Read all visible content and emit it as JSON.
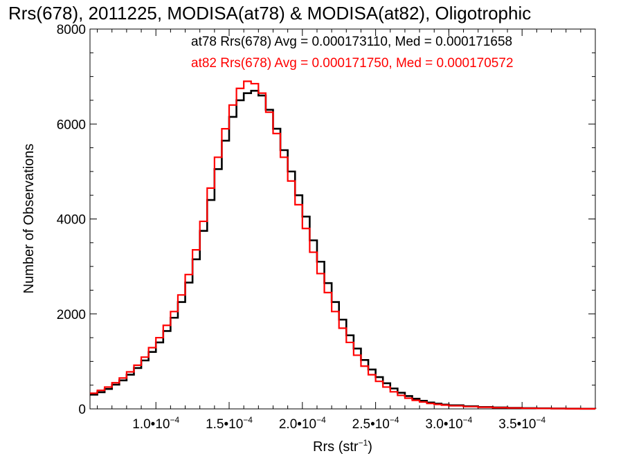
{
  "chart_data": {
    "type": "line",
    "title": "Rrs(678), 2011225, MODISA(at78) & MODISA(at82), Oligotrophic",
    "xlabel_main": "Rrs (str",
    "xlabel_sup": "−1",
    "xlabel_close": ")",
    "ylabel": "Number of Observations",
    "xlim": [
      5.5e-05,
      0.0004
    ],
    "ylim": [
      0,
      8000
    ],
    "x_ticks": [
      {
        "value": 0.0001,
        "base": "1.0•10",
        "exp": "−4"
      },
      {
        "value": 0.00015,
        "base": "1.5•10",
        "exp": "−4"
      },
      {
        "value": 0.0002,
        "base": "2.0•10",
        "exp": "−4"
      },
      {
        "value": 0.00025,
        "base": "2.5•10",
        "exp": "−4"
      },
      {
        "value": 0.0003,
        "base": "3.0•10",
        "exp": "−4"
      },
      {
        "value": 0.00035,
        "base": "3.5•10",
        "exp": "−4"
      }
    ],
    "y_ticks": [
      {
        "value": 0,
        "label": "0"
      },
      {
        "value": 2000,
        "label": "2000"
      },
      {
        "value": 4000,
        "label": "4000"
      },
      {
        "value": 6000,
        "label": "6000"
      },
      {
        "value": 8000,
        "label": "8000"
      }
    ],
    "legend_position": "top-right",
    "grid": false,
    "series": [
      {
        "name": "at78",
        "color": "#000000",
        "legend_text": "at78 Rrs(678) Avg = 0.000173110, Med = 0.000171658",
        "x": [
          5.5e-05,
          6e-05,
          6.5e-05,
          7e-05,
          7.5e-05,
          8e-05,
          8.5e-05,
          9e-05,
          9.5e-05,
          0.0001,
          0.000105,
          0.00011,
          0.000115,
          0.00012,
          0.000125,
          0.00013,
          0.000135,
          0.00014,
          0.000145,
          0.00015,
          0.000155,
          0.00016,
          0.000165,
          0.00017,
          0.000175,
          0.00018,
          0.000185,
          0.00019,
          0.000195,
          0.0002,
          0.000205,
          0.00021,
          0.000215,
          0.00022,
          0.000225,
          0.00023,
          0.000235,
          0.00024,
          0.000245,
          0.00025,
          0.000255,
          0.00026,
          0.000265,
          0.00027,
          0.000275,
          0.00028,
          0.000285,
          0.00029,
          0.000295,
          0.0003,
          0.00031,
          0.00032,
          0.00033,
          0.00034,
          0.00035,
          0.00036,
          0.00037,
          0.00038,
          0.00039,
          0.0004
        ],
        "y": [
          300,
          350,
          420,
          510,
          600,
          720,
          860,
          1020,
          1200,
          1400,
          1640,
          1920,
          2250,
          2660,
          3150,
          3750,
          4400,
          5050,
          5650,
          6150,
          6500,
          6650,
          6700,
          6600,
          6300,
          5900,
          5450,
          5000,
          4500,
          4050,
          3550,
          3100,
          2650,
          2250,
          1880,
          1550,
          1270,
          1030,
          830,
          670,
          540,
          430,
          340,
          270,
          215,
          170,
          135,
          110,
          90,
          75,
          55,
          40,
          30,
          22,
          16,
          12,
          8,
          5,
          3,
          2
        ]
      },
      {
        "name": "at82",
        "color": "#ff0000",
        "legend_text": "at82 Rrs(678) Avg = 0.000171750, Med = 0.000170572",
        "x": [
          5.5e-05,
          6e-05,
          6.5e-05,
          7e-05,
          7.5e-05,
          8e-05,
          8.5e-05,
          9e-05,
          9.5e-05,
          0.0001,
          0.000105,
          0.00011,
          0.000115,
          0.00012,
          0.000125,
          0.00013,
          0.000135,
          0.00014,
          0.000145,
          0.00015,
          0.000155,
          0.00016,
          0.000165,
          0.00017,
          0.000175,
          0.00018,
          0.000185,
          0.00019,
          0.000195,
          0.0002,
          0.000205,
          0.00021,
          0.000215,
          0.00022,
          0.000225,
          0.00023,
          0.000235,
          0.00024,
          0.000245,
          0.00025,
          0.000255,
          0.00026,
          0.000265,
          0.00027,
          0.000275,
          0.00028,
          0.000285,
          0.00029,
          0.000295,
          0.0003,
          0.00031,
          0.00032,
          0.00033,
          0.00034,
          0.00035,
          0.00036,
          0.00037,
          0.00038,
          0.00039,
          0.0004
        ],
        "y": [
          330,
          390,
          460,
          550,
          650,
          780,
          920,
          1090,
          1290,
          1500,
          1760,
          2050,
          2400,
          2830,
          3350,
          3950,
          4650,
          5300,
          5900,
          6400,
          6750,
          6900,
          6850,
          6650,
          6250,
          5800,
          5300,
          4800,
          4300,
          3800,
          3300,
          2850,
          2450,
          2050,
          1700,
          1400,
          1130,
          900,
          720,
          580,
          460,
          360,
          285,
          225,
          180,
          145,
          115,
          95,
          80,
          65,
          48,
          35,
          26,
          19,
          14,
          10,
          7,
          4,
          2,
          1
        ]
      }
    ]
  }
}
